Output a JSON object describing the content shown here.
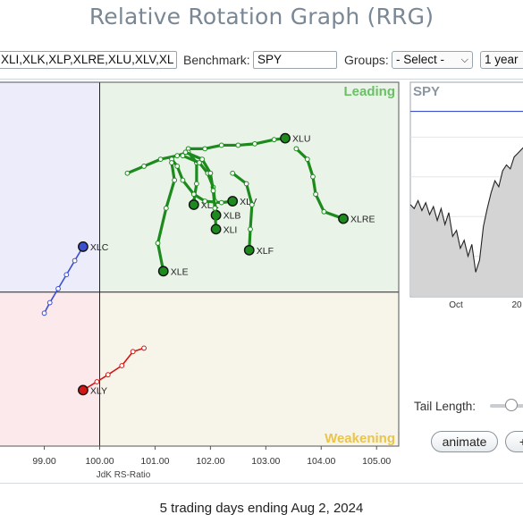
{
  "title": "Relative Rotation Graph (RRG)",
  "toolbar": {
    "symbols_value": "XLI,XLK,XLP,XLRE,XLU,XLV,XL",
    "benchmark_label": "Benchmark:",
    "benchmark_value": "SPY",
    "groups_label": "Groups:",
    "groups_value": "- Select -",
    "period_value": "1 year"
  },
  "colors": {
    "leading": "#e9f3e8",
    "weakening": "#f7f4ea",
    "lagging": "#fbe9ec",
    "improving": "#ececfa",
    "leading_text": "#6bbf66",
    "weakening_text": "#e9c54a",
    "green": "#1d8a1d",
    "blue": "#3b4fd1",
    "red": "#d31515"
  },
  "chart_data": [
    {
      "type": "scatter",
      "title": "",
      "xlabel": "JdK RS-Ratio",
      "ylabel": "",
      "xlim": [
        98.2,
        105.4
      ],
      "ylim": [
        97.8,
        103.0
      ],
      "x_ticks": [
        "99.00",
        "100.00",
        "101.00",
        "102.00",
        "103.00",
        "104.00",
        "105.00"
      ],
      "center": [
        100,
        100
      ],
      "quadrants": {
        "top_right": "Leading",
        "bottom_right": "Weakening"
      },
      "series": [
        {
          "name": "XLU",
          "color": "green",
          "points": [
            [
              101.6,
              102.05
            ],
            [
              101.9,
              102.05
            ],
            [
              102.2,
              102.1
            ],
            [
              102.5,
              102.1
            ],
            [
              102.8,
              102.12
            ],
            [
              103.15,
              102.18
            ],
            [
              103.35,
              102.2
            ]
          ]
        },
        {
          "name": "XLRE",
          "color": "green",
          "points": [
            [
              103.55,
              102.05
            ],
            [
              103.75,
              101.9
            ],
            [
              103.85,
              101.65
            ],
            [
              103.9,
              101.4
            ],
            [
              104.05,
              101.15
            ],
            [
              104.4,
              101.05
            ]
          ]
        },
        {
          "name": "XLK",
          "color": "green",
          "points": [
            [
              100.5,
              101.7
            ],
            [
              100.8,
              101.8
            ],
            [
              101.1,
              101.9
            ],
            [
              101.4,
              101.95
            ],
            [
              101.6,
              102.0
            ],
            [
              101.75,
              101.85
            ],
            [
              101.75,
              101.55
            ],
            [
              101.7,
              101.3
            ],
            [
              101.7,
              101.25
            ]
          ]
        },
        {
          "name": "XLV",
          "color": "green",
          "points": [
            [
              101.3,
              101.9
            ],
            [
              101.4,
              101.8
            ],
            [
              101.5,
              101.6
            ],
            [
              101.7,
              101.4
            ],
            [
              101.9,
              101.3
            ],
            [
              102.2,
              101.28
            ],
            [
              102.4,
              101.3
            ]
          ]
        },
        {
          "name": "XLB",
          "color": "green",
          "points": [
            [
              101.5,
              101.95
            ],
            [
              101.8,
              101.85
            ],
            [
              101.95,
              101.7
            ],
            [
              102.05,
              101.5
            ],
            [
              102.08,
              101.3
            ],
            [
              102.1,
              101.1
            ]
          ]
        },
        {
          "name": "XLI",
          "color": "green",
          "points": [
            [
              101.55,
              102.0
            ],
            [
              101.85,
              101.9
            ],
            [
              102.0,
              101.7
            ],
            [
              102.05,
              101.45
            ],
            [
              102.08,
              101.2
            ],
            [
              102.1,
              100.9
            ]
          ]
        },
        {
          "name": "XLF",
          "color": "green",
          "points": [
            [
              102.4,
              101.7
            ],
            [
              102.65,
              101.55
            ],
            [
              102.75,
              101.25
            ],
            [
              102.72,
              100.9
            ],
            [
              102.7,
              100.6
            ]
          ]
        },
        {
          "name": "XLE",
          "color": "green",
          "points": [
            [
              101.3,
              101.85
            ],
            [
              101.35,
              101.6
            ],
            [
              101.2,
              101.2
            ],
            [
              101.05,
              100.7
            ],
            [
              101.15,
              100.3
            ]
          ]
        },
        {
          "name": "XLC",
          "color": "blue",
          "points": [
            [
              99.0,
              99.7
            ],
            [
              99.1,
              99.85
            ],
            [
              99.25,
              100.05
            ],
            [
              99.4,
              100.25
            ],
            [
              99.55,
              100.45
            ],
            [
              99.7,
              100.65
            ]
          ]
        },
        {
          "name": "XLY",
          "color": "red",
          "points": [
            [
              100.8,
              99.2
            ],
            [
              100.6,
              99.15
            ],
            [
              100.4,
              98.95
            ],
            [
              100.15,
              98.82
            ],
            [
              99.95,
              98.72
            ],
            [
              99.7,
              98.6
            ]
          ]
        }
      ]
    },
    {
      "type": "line",
      "title": "SPY",
      "x_ticks": [
        "Oct",
        "20"
      ],
      "series": [
        {
          "name": "SPY",
          "values": [
            0.46,
            0.44,
            0.48,
            0.43,
            0.47,
            0.41,
            0.45,
            0.38,
            0.44,
            0.36,
            0.42,
            0.3,
            0.33,
            0.24,
            0.28,
            0.2,
            0.26,
            0.12,
            0.18,
            0.35,
            0.44,
            0.52,
            0.58,
            0.55,
            0.63,
            0.66,
            0.64,
            0.7,
            0.72,
            0.74,
            0.76
          ]
        }
      ],
      "reference_level": 0.93
    }
  ],
  "footer": "5 trading days ending Aug 2, 2024",
  "controls": {
    "tail_length_label": "Tail Length:",
    "animate_label": "animate",
    "plus_label": "+"
  }
}
